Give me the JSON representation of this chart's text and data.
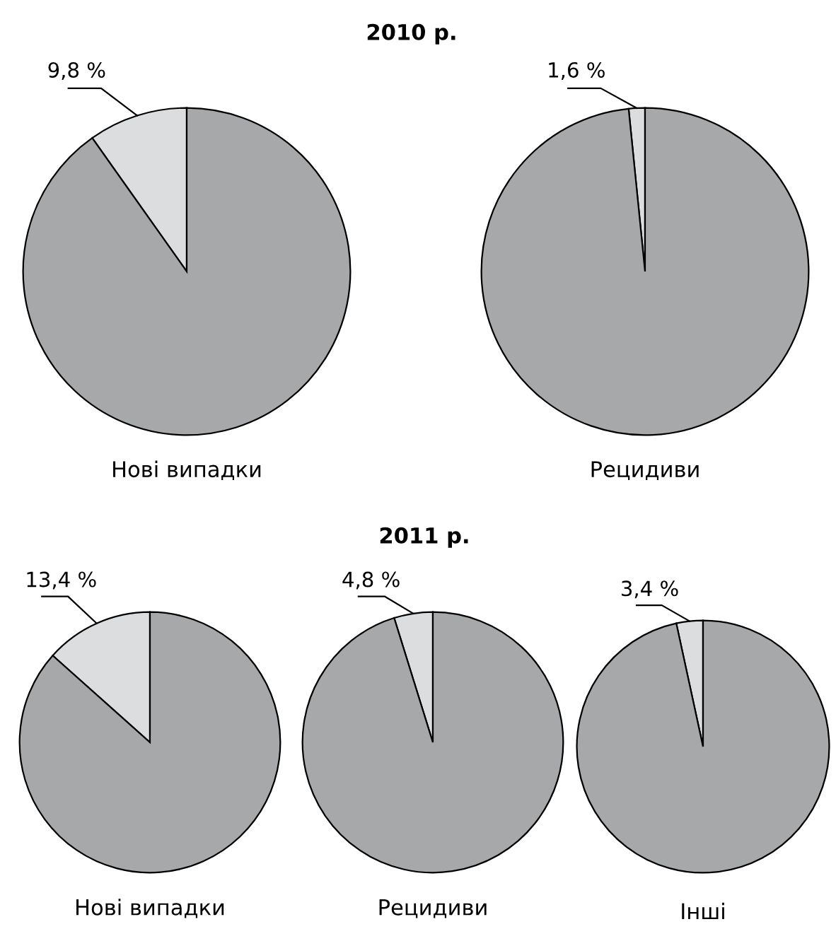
{
  "chart_data": [
    {
      "type": "pie",
      "title": "2010 р.",
      "xlabel": "Нові випадки",
      "categories": [
        null,
        null
      ],
      "values": [
        9.8,
        90.2
      ],
      "colors": [
        "#dcdddf",
        "#a7a8aa"
      ],
      "value_labels": [
        "9,8 %",
        null
      ]
    },
    {
      "type": "pie",
      "xlabel": "Рецидиви",
      "categories": [
        null,
        null
      ],
      "values": [
        1.6,
        98.4
      ],
      "colors": [
        "#dcdddf",
        "#a7a8aa"
      ],
      "value_labels": [
        "1,6 %",
        null
      ]
    },
    {
      "type": "pie",
      "xlabel": "Нові випадки",
      "categories": [
        null,
        null
      ],
      "values": [
        13.4,
        86.6
      ],
      "colors": [
        "#dcdddf",
        "#a7a8aa"
      ],
      "value_labels": [
        "13,4 %",
        null
      ]
    },
    {
      "type": "pie",
      "title": "2011 р.",
      "xlabel": "Рецидиви",
      "categories": [
        null,
        null
      ],
      "values": [
        4.8,
        95.2
      ],
      "colors": [
        "#dcdddf",
        "#a7a8aa"
      ],
      "value_labels": [
        "4,8 %",
        null
      ]
    },
    {
      "type": "pie",
      "xlabel": "Інші",
      "categories": [
        null,
        null
      ],
      "values": [
        3.4,
        96.6
      ],
      "colors": [
        "#dcdddf",
        "#a7a8aa"
      ],
      "value_labels": [
        "3,4 %",
        null
      ]
    }
  ]
}
